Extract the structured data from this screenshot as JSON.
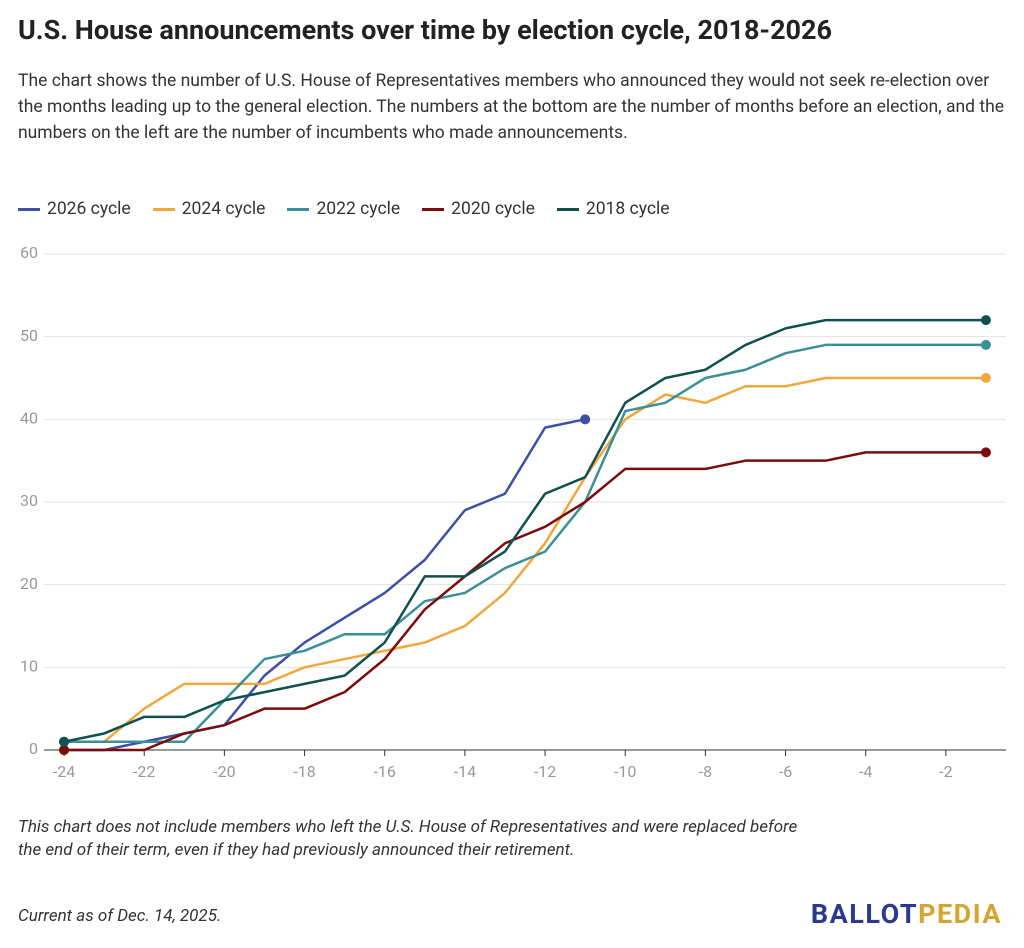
{
  "chart_data": {
    "type": "line",
    "title": "U.S. House announcements over time by election cycle, 2018-2026",
    "subtitle": "The chart shows the number of U.S. House of Representatives members who announced they would not seek re-election over the months leading up to the general election. The numbers at the bottom are the number of months before an election, and the numbers on the left are the number of incumbents who made announcements.",
    "x": [
      -24,
      -23,
      -22,
      -21,
      -20,
      -19,
      -18,
      -17,
      -16,
      -15,
      -14,
      -13,
      -12,
      -11,
      -10,
      -9,
      -8,
      -7,
      -6,
      -5,
      -4,
      -3,
      -2,
      -1
    ],
    "series": [
      {
        "name": "2026 cycle",
        "color": "#3d4fa8",
        "values": [
          0,
          0,
          1,
          2,
          3,
          9,
          13,
          16,
          19,
          23,
          29,
          31,
          39,
          40,
          null,
          null,
          null,
          null,
          null,
          null,
          null,
          null,
          null,
          null
        ]
      },
      {
        "name": "2024 cycle",
        "color": "#f0a83c",
        "values": [
          1,
          1,
          5,
          8,
          8,
          8,
          10,
          11,
          12,
          13,
          15,
          19,
          25,
          33,
          40,
          43,
          42,
          44,
          44,
          45,
          45,
          45,
          45,
          45
        ]
      },
      {
        "name": "2022 cycle",
        "color": "#3a9098",
        "values": [
          1,
          1,
          1,
          1,
          6,
          11,
          12,
          14,
          14,
          18,
          19,
          22,
          24,
          30,
          41,
          42,
          45,
          46,
          48,
          49,
          49,
          49,
          49,
          49
        ]
      },
      {
        "name": "2020 cycle",
        "color": "#7a0c0c",
        "values": [
          0,
          0,
          0,
          2,
          3,
          5,
          5,
          7,
          11,
          17,
          21,
          25,
          27,
          30,
          34,
          34,
          34,
          35,
          35,
          35,
          36,
          36,
          36,
          36
        ]
      },
      {
        "name": "2018 cycle",
        "color": "#10504f",
        "values": [
          1,
          2,
          4,
          4,
          6,
          7,
          8,
          9,
          13,
          21,
          21,
          24,
          31,
          33,
          42,
          45,
          46,
          49,
          51,
          52,
          52,
          52,
          52,
          52
        ]
      }
    ],
    "xlim": [
      -24.5,
      -0.5
    ],
    "xticks": [
      -24,
      -22,
      -20,
      -18,
      -16,
      -14,
      -12,
      -10,
      -8,
      -6,
      -4,
      -2
    ],
    "ylim": [
      0,
      60
    ],
    "yticks": [
      0,
      10,
      20,
      30,
      40,
      50,
      60
    ],
    "grid": true,
    "legend": "top",
    "note": "This chart does not include members who left the U.S. House of Representatives and were replaced before the end of their term, even if they had previously announced their retirement.",
    "date_note": "Current as of Dec. 14, 2025.",
    "logo": {
      "first": "BALLOT",
      "second": "PEDIA"
    }
  }
}
